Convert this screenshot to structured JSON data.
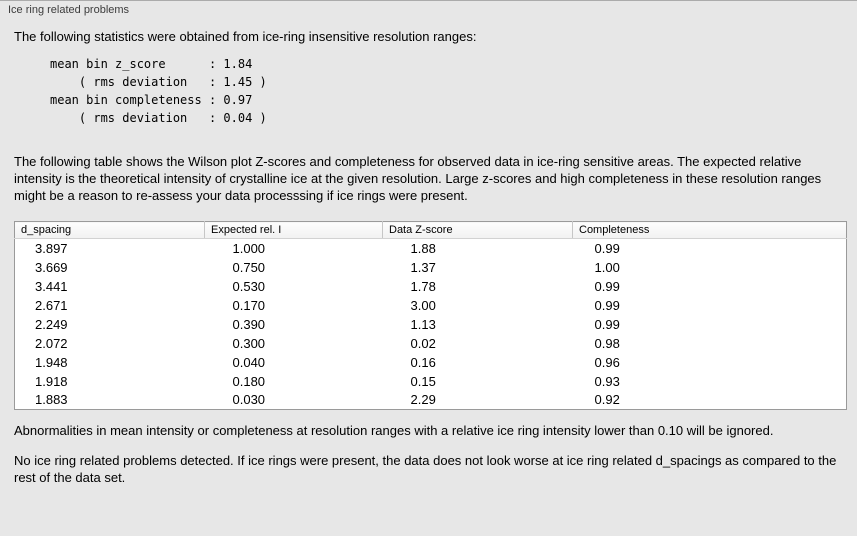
{
  "panel": {
    "title": "Ice ring related problems"
  },
  "intro": "The following statistics were obtained from ice-ring insensitive resolution ranges:",
  "stats_block": "mean bin z_score      : 1.84\n    ( rms deviation   : 1.45 )\nmean bin completeness : 0.97\n    ( rms deviation   : 0.04 )",
  "table_description": "The following table shows the Wilson plot Z-scores and completeness for observed data in ice-ring sensitive areas. The expected relative intensity is the theoretical intensity of crystalline ice at the given resolution. Large z-scores and high completeness in these resolution ranges might be a reason to re-assess your data processsing if ice rings were present.",
  "table": {
    "columns": [
      "d_spacing",
      "Expected rel. I",
      "Data Z-score",
      "Completeness"
    ],
    "rows": [
      [
        "3.897",
        "1.000",
        "1.88",
        "0.99"
      ],
      [
        "3.669",
        "0.750",
        "1.37",
        "1.00"
      ],
      [
        "3.441",
        "0.530",
        "1.78",
        "0.99"
      ],
      [
        "2.671",
        "0.170",
        "3.00",
        "0.99"
      ],
      [
        "2.249",
        "0.390",
        "1.13",
        "0.99"
      ],
      [
        "2.072",
        "0.300",
        "0.02",
        "0.98"
      ],
      [
        "1.948",
        "0.040",
        "0.16",
        "0.96"
      ],
      [
        "1.918",
        "0.180",
        "0.15",
        "0.93"
      ],
      [
        "1.883",
        "0.030",
        "2.29",
        "0.92"
      ]
    ]
  },
  "ignore_note": "Abnormalities in mean intensity or completeness at resolution ranges with a relative ice ring intensity lower than 0.10 will be ignored.",
  "conclusion": "No ice ring related problems detected. If ice rings were present, the data does not look worse at ice ring related d_spacings as compared to the rest of the data set."
}
